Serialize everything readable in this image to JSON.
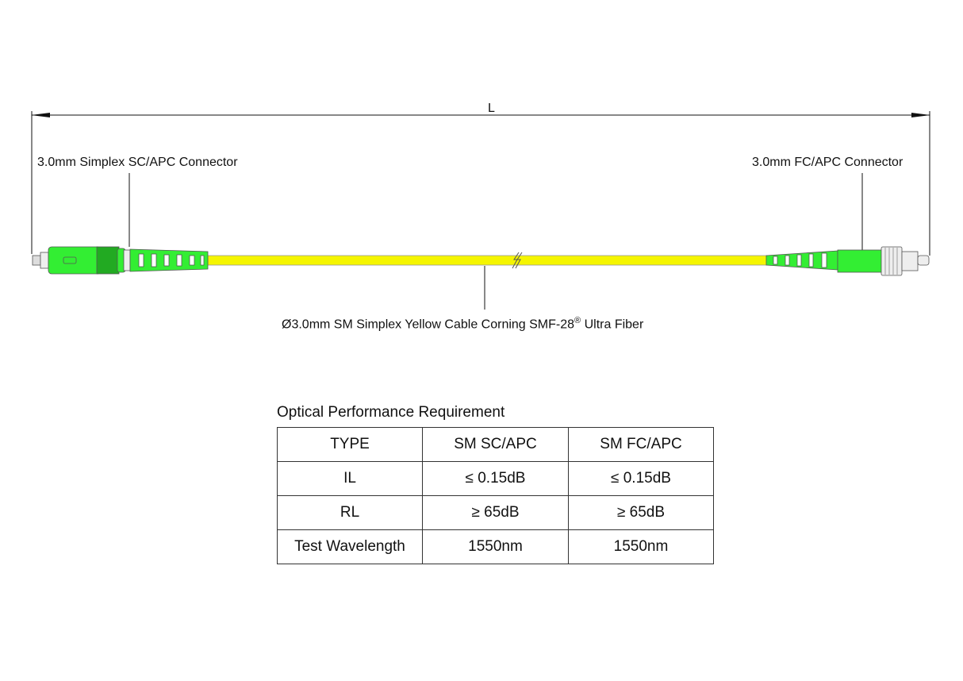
{
  "dimension_label": "L",
  "left_connector_label": "3.0mm Simplex SC/APC Connector",
  "right_connector_label": "3.0mm FC/APC Connector",
  "cable_label": "Ø3.0mm SM Simplex Yellow Cable  Corning SMF-28",
  "cable_label_sup": "®",
  "cable_label_end": " Ultra Fiber",
  "colors": {
    "connector": "#33ee33",
    "cable": "#f5f500",
    "boot_dark": "#22aa22"
  },
  "table": {
    "title": "Optical Performance Requirement",
    "headers": [
      "TYPE",
      "SM SC/APC",
      "SM FC/APC"
    ],
    "rows": [
      [
        "IL",
        "≤ 0.15dB",
        "≤ 0.15dB"
      ],
      [
        "RL",
        "≥ 65dB",
        "≥ 65dB"
      ],
      [
        "Test Wavelength",
        "1550nm",
        "1550nm"
      ]
    ]
  }
}
